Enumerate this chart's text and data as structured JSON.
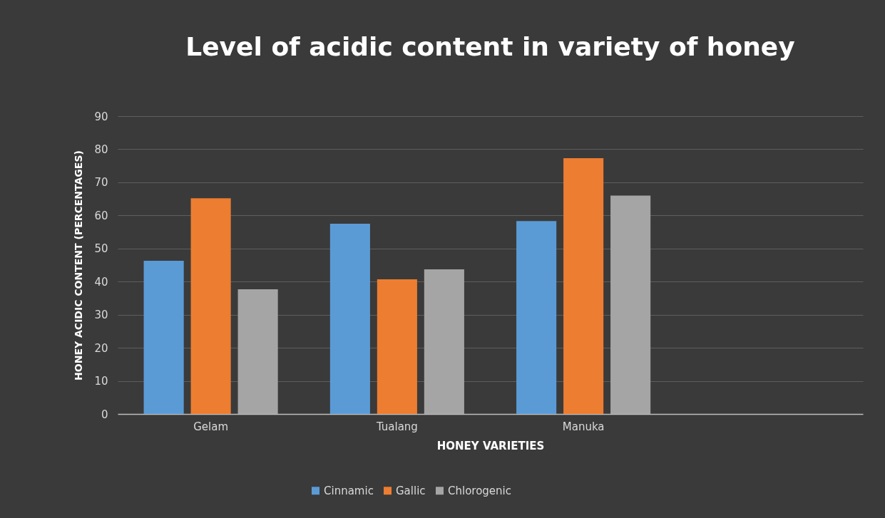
{
  "chart_data": {
    "type": "bar",
    "title": "Level of acidic content in variety of honey",
    "xlabel": "HONEY VARIETIES",
    "ylabel": "HONEY ACIDIC CONTENT (PERCENTAGES)",
    "categories": [
      "Gelam",
      "Tualang",
      "Manuka",
      null
    ],
    "series": [
      {
        "name": "Cinnamic",
        "color": "#5b9bd5",
        "values": [
          46.3,
          57.5,
          58.3,
          null
        ]
      },
      {
        "name": "Gallic",
        "color": "#ed7d31",
        "values": [
          65.2,
          40.7,
          77.3,
          null
        ]
      },
      {
        "name": "Chlorogenic",
        "color": "#a5a5a5",
        "values": [
          37.7,
          43.7,
          66,
          null
        ]
      }
    ],
    "ylim": [
      0,
      90
    ],
    "yticks": [
      0,
      10,
      20,
      30,
      40,
      50,
      60,
      70,
      80,
      90
    ],
    "grid": "y",
    "legend": "bottom"
  }
}
